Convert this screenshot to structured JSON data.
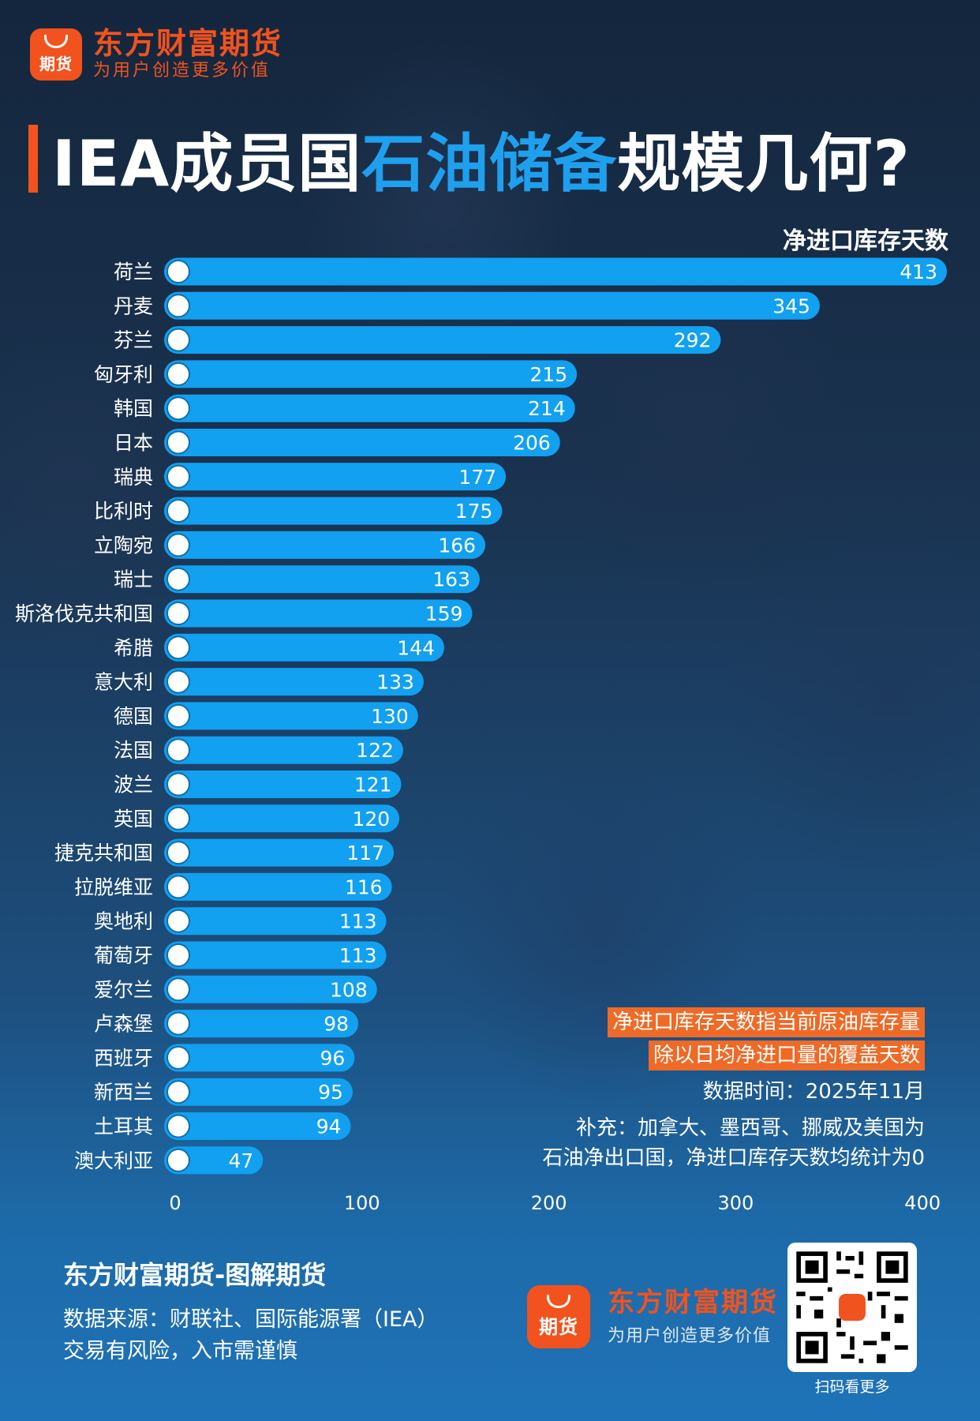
{
  "brand": {
    "name": "东方财富期货",
    "slogan": "为用户创造更多价值",
    "icon_text": "期货",
    "accent": "#f2521d"
  },
  "title": {
    "prefix": "IEA成员国",
    "highlight": "石油储备",
    "suffix": "规模几何?",
    "highlight_color": "#1ea0ee"
  },
  "metric_label": "净进口库存天数",
  "chart_data": {
    "type": "bar",
    "orientation": "horizontal",
    "title": "IEA成员国石油储备规模几何?",
    "xlabel": "净进口库存天数",
    "categories": [
      "荷兰",
      "丹麦",
      "芬兰",
      "匈牙利",
      "韩国",
      "日本",
      "瑞典",
      "比利时",
      "立陶宛",
      "瑞士",
      "斯洛伐克共和国",
      "希腊",
      "意大利",
      "德国",
      "法国",
      "波兰",
      "英国",
      "捷克共和国",
      "拉脱维亚",
      "奥地利",
      "葡萄牙",
      "爱尔兰",
      "卢森堡",
      "西班牙",
      "新西兰",
      "土耳其",
      "澳大利亚"
    ],
    "values": [
      413,
      345,
      292,
      215,
      214,
      206,
      177,
      175,
      166,
      163,
      159,
      144,
      133,
      130,
      122,
      121,
      120,
      117,
      116,
      113,
      113,
      108,
      98,
      96,
      95,
      94,
      47
    ],
    "xlim": [
      0,
      413
    ],
    "xticks": [
      "0",
      "100",
      "200",
      "300",
      "400"
    ],
    "bar_color": "#12a0f0",
    "grid": false
  },
  "notes": {
    "definition_line1": "净进口库存天数指当前原油库存量",
    "definition_line2": "除以日均净进口量的覆盖天数",
    "date": "数据时间：2025年11月",
    "supplement_line1": "补充：加拿大、墨西哥、挪威及美国为",
    "supplement_line2": "石油净出口国，净进口库存天数均统计为0"
  },
  "footer": {
    "title": "东方财富期货-图解期货",
    "source": "数据来源：财联社、国际能源署（IEA）",
    "risk": "交易有风险，入市需谨慎",
    "qr_label": "扫码看更多"
  }
}
